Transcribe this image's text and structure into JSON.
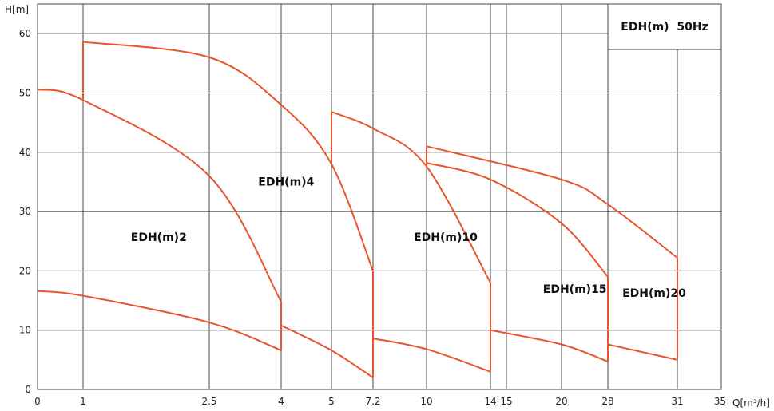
{
  "chart_data": {
    "type": "line",
    "title": "EDH(m)  50Hz",
    "xlabel": "Q[m³/h]",
    "ylabel": "H[m]",
    "ylim": [
      0,
      65
    ],
    "grid": true,
    "x_ticks": [
      {
        "label": "0",
        "value": 0
      },
      {
        "label": "1",
        "value": 1
      },
      {
        "label": "2.5",
        "value": 2.5
      },
      {
        "label": "4",
        "value": 4
      },
      {
        "label": "5",
        "value": 5
      },
      {
        "label": "7.2",
        "value": 7.2
      },
      {
        "label": "10",
        "value": 10
      },
      {
        "label": "14",
        "value": 14
      },
      {
        "label": "15",
        "value": 15
      },
      {
        "label": "20",
        "value": 20
      },
      {
        "label": "28",
        "value": 28
      },
      {
        "label": "31",
        "value": 31
      },
      {
        "label": "35",
        "value": 35
      }
    ],
    "y_ticks": [
      0,
      10,
      20,
      30,
      40,
      50,
      60
    ],
    "series": [
      {
        "name": "EDH(m)2",
        "points": [
          [
            0,
            50.6
          ],
          [
            1,
            48.8
          ],
          [
            2.5,
            36
          ],
          [
            4,
            14.8
          ]
        ]
      },
      {
        "name": "EDH(m)2",
        "points": [
          [
            0,
            16.6
          ],
          [
            1,
            15.8
          ],
          [
            2.5,
            11.3
          ],
          [
            4,
            6.6
          ]
        ]
      },
      {
        "name": "EDH(m)4",
        "points": [
          [
            1,
            58.6
          ],
          [
            2.5,
            56
          ],
          [
            4,
            48
          ],
          [
            5,
            38
          ],
          [
            7.2,
            20
          ]
        ]
      },
      {
        "name": "EDH(m)4",
        "points": [
          [
            4,
            10.8
          ],
          [
            5,
            6.6
          ],
          [
            7.2,
            2
          ]
        ]
      },
      {
        "name": "EDH(m)10",
        "points": [
          [
            5,
            46.8
          ],
          [
            7.2,
            44
          ],
          [
            10,
            37.6
          ],
          [
            14,
            18
          ]
        ]
      },
      {
        "name": "EDH(m)10",
        "points": [
          [
            7.2,
            8.6
          ],
          [
            10,
            6.8
          ],
          [
            14,
            3
          ]
        ]
      },
      {
        "name": "EDH(m)15",
        "points": [
          [
            10,
            38.2
          ],
          [
            14,
            35.4
          ],
          [
            20,
            28
          ],
          [
            28,
            19
          ]
        ]
      },
      {
        "name": "EDH(m)15",
        "points": [
          [
            14,
            10
          ],
          [
            20,
            7.6
          ],
          [
            28,
            4.7
          ]
        ]
      },
      {
        "name": "EDH(m)20",
        "points": [
          [
            10,
            41
          ],
          [
            20,
            35.4
          ],
          [
            28,
            31.2
          ],
          [
            31,
            22.2
          ]
        ]
      },
      {
        "name": "EDH(m)20",
        "points": [
          [
            28,
            7.6
          ],
          [
            31,
            5
          ]
        ]
      }
    ],
    "vertical_segments": [
      {
        "x": 1,
        "y": [
          48.8,
          58.6
        ]
      },
      {
        "x": 4,
        "y": [
          6.6,
          14.8
        ]
      },
      {
        "x": 5,
        "y": [
          38,
          46.8
        ]
      },
      {
        "x": 7.2,
        "y": [
          2,
          20
        ]
      },
      {
        "x": 10,
        "y": [
          37.6,
          41
        ]
      },
      {
        "x": 14,
        "y": [
          3,
          18
        ]
      },
      {
        "x": 28,
        "y": [
          4.7,
          19
        ]
      },
      {
        "x": 31,
        "y": [
          5,
          22.2
        ]
      }
    ],
    "annotations": [
      {
        "text": "EDH(m)2",
        "x": 1.9,
        "y": 25
      },
      {
        "text": "EDH(m)4",
        "x": 4.1,
        "y": 34.4
      },
      {
        "text": "EDH(m)10",
        "x": 11.2,
        "y": 25
      },
      {
        "text": "EDH(m)15",
        "x": 22.3,
        "y": 16.3
      },
      {
        "text": "EDH(m)20",
        "x": 30,
        "y": 15.6
      }
    ],
    "colors": {
      "curve": "#e8552a",
      "grid": "#444444",
      "axis": "#222222"
    }
  }
}
